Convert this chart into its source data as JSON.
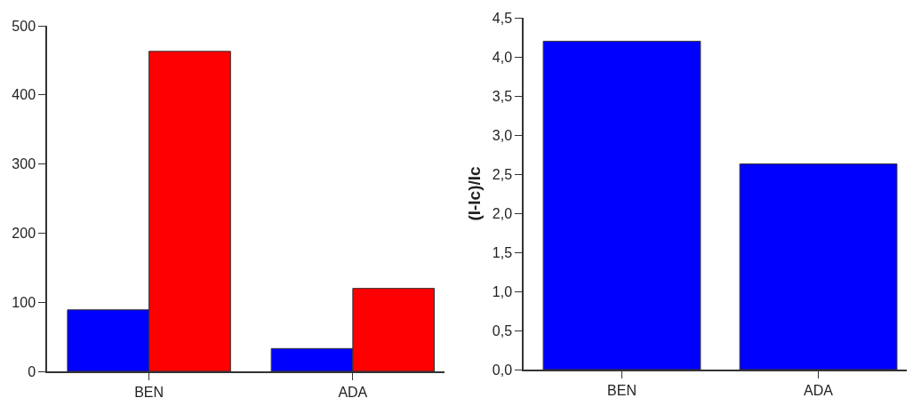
{
  "chart_data": [
    {
      "type": "bar",
      "categories": [
        "BEN",
        "ADA"
      ],
      "series": [
        {
          "color": "#0000ff",
          "values": [
            89,
            33
          ]
        },
        {
          "color": "#ff0000",
          "values": [
            463,
            120
          ]
        }
      ],
      "ylim": [
        0,
        500
      ],
      "yticks": [
        0,
        100,
        200,
        300,
        400,
        500
      ],
      "grid": false
    },
    {
      "type": "bar",
      "categories": [
        "BEN",
        "ADA"
      ],
      "ylabel": "(I-Ic)/Ic",
      "series": [
        {
          "color": "#0000ff",
          "values": [
            4.2,
            2.63
          ]
        }
      ],
      "ylim": [
        0,
        4.5
      ],
      "yticks": [
        {
          "value": 0,
          "label": "0,0"
        },
        {
          "value": 0.5,
          "label": "0,5"
        },
        {
          "value": 1,
          "label": "1,0"
        },
        {
          "value": 1.5,
          "label": "1,5"
        },
        {
          "value": 2,
          "label": "2,0"
        },
        {
          "value": 2.5,
          "label": "2,5"
        },
        {
          "value": 3,
          "label": "3,0"
        },
        {
          "value": 3.5,
          "label": "3,5"
        },
        {
          "value": 4,
          "label": "4,0"
        },
        {
          "value": 4.5,
          "label": "4,5"
        }
      ],
      "grid": false
    }
  ]
}
